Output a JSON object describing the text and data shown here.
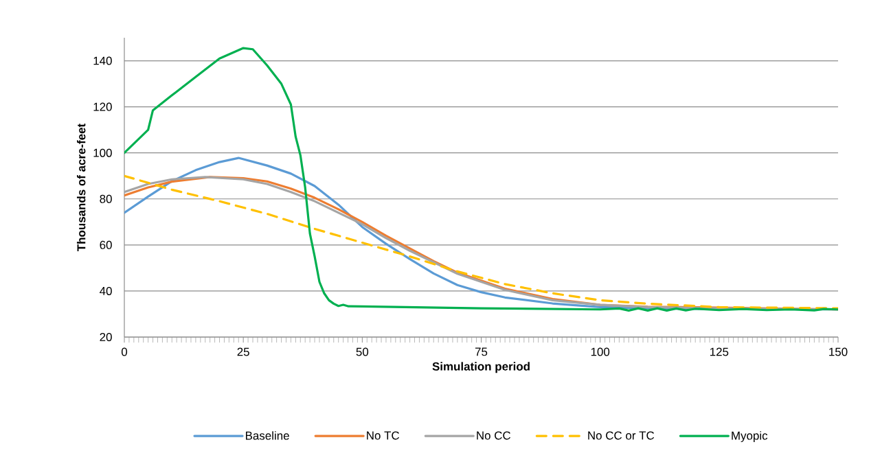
{
  "chart_data": {
    "type": "line",
    "xlabel": "Simulation period",
    "ylabel": "Thousands of acre-feet",
    "xlim": [
      0,
      150
    ],
    "ylim": [
      20,
      150
    ],
    "xticks": [
      0,
      25,
      50,
      75,
      100,
      125,
      150
    ],
    "yticks": [
      20,
      40,
      60,
      80,
      100,
      120,
      140
    ],
    "grid": "y",
    "legend": "bottom",
    "series": [
      {
        "name": "Baseline",
        "color": "#5b9bd5",
        "line_style": "solid",
        "x": [
          0,
          5,
          10,
          15,
          20,
          24,
          30,
          35,
          40,
          45,
          50,
          55,
          60,
          65,
          70,
          75,
          80,
          90,
          100,
          110,
          125,
          150
        ],
        "values": [
          74,
          81,
          87.7,
          92.5,
          96,
          97.8,
          94.5,
          91,
          85.6,
          77.5,
          67.8,
          60.5,
          53.9,
          47.6,
          42.6,
          39.5,
          37.2,
          34.6,
          33,
          32.5,
          32.2,
          32
        ]
      },
      {
        "name": "No TC",
        "color": "#ed7d31",
        "line_style": "solid",
        "x": [
          0,
          5,
          10,
          18,
          25,
          30,
          35,
          40,
          45,
          50,
          55,
          60,
          65,
          70,
          75,
          80,
          90,
          100,
          110,
          125,
          150
        ],
        "values": [
          81.5,
          85,
          87.5,
          89.5,
          89,
          87.6,
          84.5,
          80.5,
          75.5,
          70,
          64,
          58.5,
          53,
          48,
          44.5,
          41,
          36.5,
          34,
          33.2,
          32.8,
          32
        ]
      },
      {
        "name": "No CC",
        "color": "#a5a5a5",
        "line_style": "solid",
        "x": [
          0,
          5,
          10,
          17,
          25,
          30,
          35,
          40,
          45,
          50,
          55,
          60,
          65,
          70,
          75,
          80,
          90,
          100,
          110,
          125,
          150
        ],
        "values": [
          83,
          86.5,
          88.5,
          89.5,
          88.5,
          86.5,
          83,
          79,
          74,
          69,
          63,
          57.5,
          52.5,
          47.5,
          44,
          40.5,
          36,
          34,
          33,
          32.5,
          32
        ]
      },
      {
        "name": "No CC or TC",
        "color": "#ffc000",
        "line_style": "dashed",
        "x": [
          0,
          10,
          20,
          30,
          40,
          50,
          60,
          70,
          80,
          90,
          100,
          110,
          125,
          150
        ],
        "values": [
          90,
          84,
          79,
          73.5,
          67,
          61,
          55,
          48.5,
          43,
          39,
          36,
          34.5,
          33,
          32.5
        ]
      },
      {
        "name": "Myopic",
        "color": "#00b050",
        "line_style": "solid",
        "x": [
          0,
          5,
          6,
          10,
          15,
          20,
          25,
          27,
          30,
          33,
          35,
          36,
          37,
          38,
          39,
          40,
          41,
          42,
          43,
          44,
          45,
          46,
          47,
          50,
          75,
          100,
          104,
          106,
          108,
          110,
          112,
          114,
          116,
          118,
          120,
          125,
          130,
          135,
          140,
          145,
          147,
          150
        ],
        "values": [
          100,
          110,
          118.5,
          125,
          133,
          141,
          145.5,
          145,
          138,
          130,
          121,
          107,
          99,
          85,
          65,
          55,
          44,
          39,
          36,
          34.5,
          33.5,
          34,
          33.4,
          33.3,
          32.5,
          32,
          32.4,
          31.5,
          32.5,
          31.5,
          32.5,
          31.5,
          32.4,
          31.6,
          32.3,
          31.7,
          32.2,
          31.7,
          32,
          31.6,
          32.2,
          32
        ]
      }
    ]
  }
}
